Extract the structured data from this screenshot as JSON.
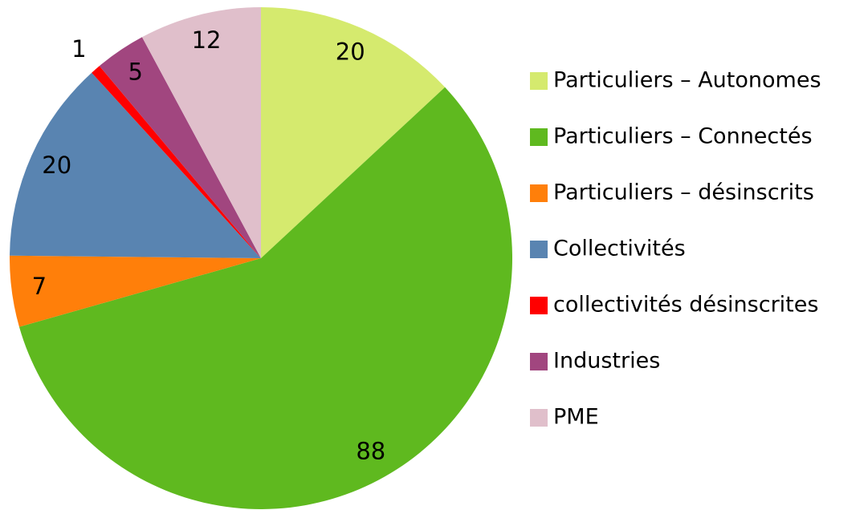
{
  "chart_data": {
    "type": "pie",
    "categories": [
      "Particuliers – Autonomes",
      "Particuliers – Connectés",
      "Particuliers – désinscrits",
      "Collectivités",
      "collectivités désinscrites",
      "Industries",
      "PME"
    ],
    "values": [
      20,
      88,
      7,
      20,
      1,
      5,
      12
    ],
    "colors": [
      "#d5ea6e",
      "#5fb91f",
      "#ff7f0a",
      "#5984b1",
      "#ff0000",
      "#a1467f",
      "#e0bfcb"
    ],
    "legend": "right"
  }
}
